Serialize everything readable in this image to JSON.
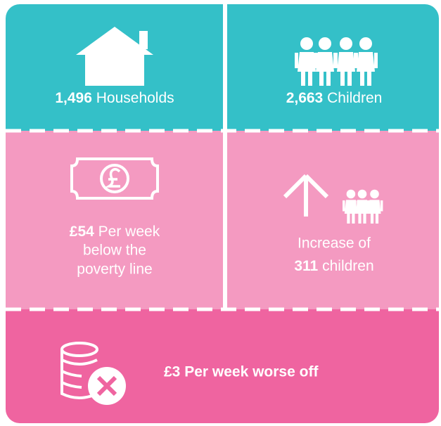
{
  "tiles": [
    {
      "value": "1,496",
      "label": "Households"
    },
    {
      "value": "2,663",
      "label": "Children"
    },
    {
      "value": "£54",
      "lines": [
        "Per week",
        "below the",
        "poverty line"
      ]
    },
    {
      "prefix": "Increase of",
      "value": "311",
      "label": "children"
    },
    {
      "value": "£3 Per week worse off"
    }
  ]
}
